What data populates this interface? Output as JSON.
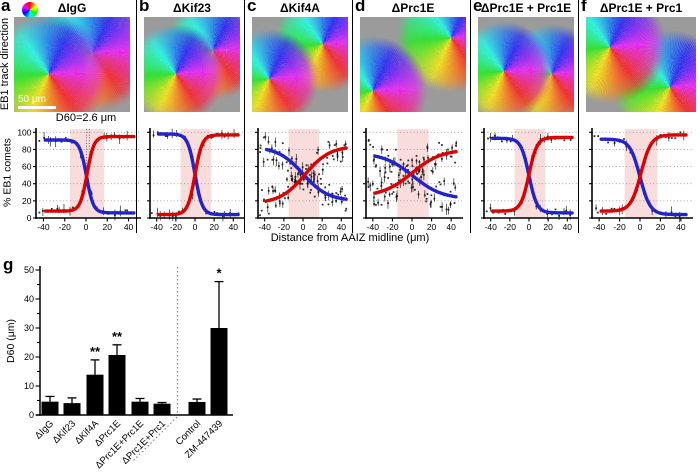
{
  "figure": {
    "row_label": "EB1 track direction",
    "scale_bar": "50 μm",
    "d60_annotation": "D60=2.6 μm",
    "plots_ylabel": "% EB1 comets",
    "plots_xlabel": "Distance from AAIZ midline (μm)",
    "panels_top": [
      {
        "letter": "a",
        "title": "ΔIgG"
      },
      {
        "letter": "b",
        "title": "ΔKif23"
      },
      {
        "letter": "c",
        "title": "ΔKif4A"
      },
      {
        "letter": "d",
        "title": "ΔPrc1E"
      },
      {
        "letter": "e",
        "title": "ΔPrc1E + Prc1E"
      },
      {
        "letter": "f",
        "title": "ΔPrc1E + Prc1"
      }
    ],
    "colors": {
      "red_curve": "#dd0000",
      "blue_curve": "#2323cc",
      "shaded_band": "#f9dcdc",
      "micrograph_background": "#9b9b9b",
      "bar_fill": "#000000"
    }
  },
  "chart_data": {
    "line_plots": {
      "type": "line",
      "xlabel": "Distance from AAIZ midline (μm)",
      "ylabel": "% EB1 comets",
      "x_range": [
        -47,
        47
      ],
      "x_ticks": [
        -40,
        -20,
        0,
        20,
        40
      ],
      "y_ticks": [
        0,
        20,
        40,
        60,
        80,
        100
      ],
      "ylim": [
        0,
        105
      ],
      "shaded_band_x": [
        -15,
        17
      ],
      "grid": "dotted horizontal lines at y ticks",
      "red_color": "#dd0000",
      "blue_color": "#2323cc",
      "panels": [
        {
          "id": "a",
          "condition": "ΔIgG",
          "annotation": "D60=2.6 μm",
          "d60_x": [
            0.5,
            3.1
          ],
          "red": {
            "low": 8,
            "high": 95,
            "x0": 1,
            "k": 3.2
          },
          "blue": {
            "low": 6,
            "high": 91,
            "x0": 0.5,
            "k": 3.2
          },
          "scatter_sd": 3
        },
        {
          "id": "b",
          "condition": "ΔKif23",
          "red": {
            "low": 4,
            "high": 97,
            "x0": 0,
            "k": 3.8
          },
          "blue": {
            "low": 4,
            "high": 98,
            "x0": 0,
            "k": 3.8
          },
          "scatter_sd": 3
        },
        {
          "id": "c",
          "condition": "ΔKif4A",
          "red": {
            "low": 17,
            "high": 84,
            "x0": 2,
            "k": 13
          },
          "blue": {
            "low": 20,
            "high": 83,
            "x0": 0,
            "k": 13
          },
          "scatter_sd": 16
        },
        {
          "id": "d",
          "condition": "ΔPrc1E",
          "red": {
            "low": 25,
            "high": 80,
            "x0": 0,
            "k": 15
          },
          "blue": {
            "low": 22,
            "high": 76,
            "x0": 1,
            "k": 15
          },
          "scatter_sd": 18
        },
        {
          "id": "e",
          "condition": "ΔPrc1E + Prc1E",
          "red": {
            "low": 8,
            "high": 94,
            "x0": 0,
            "k": 4.2
          },
          "blue": {
            "low": 6,
            "high": 93,
            "x0": 0,
            "k": 4.2
          },
          "scatter_sd": 4
        },
        {
          "id": "f",
          "condition": "ΔPrc1E + Prc1",
          "red": {
            "low": 8,
            "high": 97,
            "x0": 1,
            "k": 5
          },
          "blue": {
            "low": 4,
            "high": 92,
            "x0": 0,
            "k": 5
          },
          "scatter_sd": 4
        }
      ]
    },
    "bar_chart": {
      "type": "bar",
      "panel_letter": "g",
      "ylabel": "D60 (μm)",
      "ylim": [
        0,
        50
      ],
      "y_ticks": [
        0,
        10,
        20,
        30,
        40,
        50
      ],
      "categories": [
        "ΔIgG",
        "ΔKif23",
        "ΔKif4A",
        "ΔPrc1E",
        "ΔPrc1E+Prc1E",
        "ΔPrc1E+Prc1",
        "Control",
        "ZM-447439"
      ],
      "values": [
        4.6,
        4.1,
        13.9,
        20.7,
        4.6,
        3.9,
        4.5,
        30
      ],
      "errors_upper": [
        1.8,
        1.8,
        5.1,
        3.5,
        1.1,
        0.4,
        1.0,
        16
      ],
      "significance": [
        "",
        "",
        "**",
        "**",
        "",
        "",
        "",
        "*"
      ],
      "separator_after": "ΔPrc1E+Prc1"
    }
  }
}
